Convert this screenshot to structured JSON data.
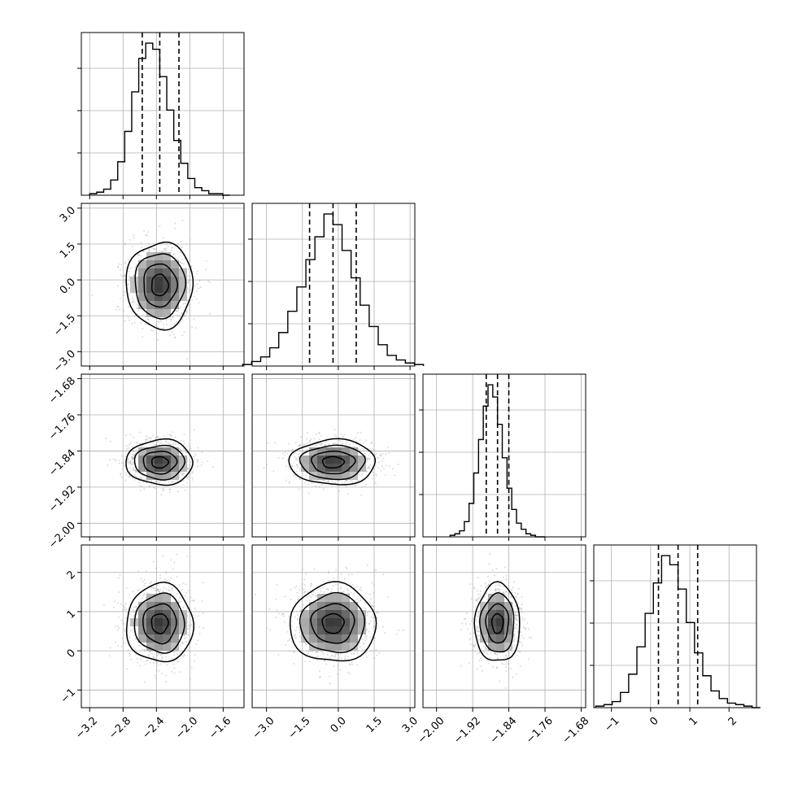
{
  "chart_data": {
    "type": "corner",
    "title": "",
    "params": [
      {
        "range": [
          -3.3,
          -1.35
        ],
        "ticks": [
          -3.2,
          -2.8,
          -2.4,
          -2.0,
          -1.6
        ],
        "tick_labels": [
          "−3.2",
          "−2.8",
          "−2.4",
          "−2.0",
          "−1.6"
        ],
        "mean": -2.36,
        "sd": 0.2,
        "quantiles": [
          -2.57,
          -2.36,
          -2.13
        ]
      },
      {
        "range": [
          -3.6,
          3.2
        ],
        "ticks": [
          -3.0,
          -1.5,
          0.0,
          1.5,
          3.0
        ],
        "tick_labels": [
          "−3.0",
          "−1.5",
          "0.0",
          "1.5",
          "3.0"
        ],
        "mean": -0.22,
        "sd": 0.9,
        "quantiles": [
          -1.2,
          -0.22,
          0.75
        ]
      },
      {
        "range": [
          -2.03,
          -1.67
        ],
        "ticks": [
          -2.0,
          -1.92,
          -1.84,
          -1.76,
          -1.68
        ],
        "tick_labels": [
          "−2.00",
          "−1.92",
          "−1.84",
          "−1.76",
          "−1.68"
        ],
        "mean": -1.865,
        "sd": 0.025,
        "quantiles": [
          -1.89,
          -1.865,
          -1.84
        ]
      },
      {
        "range": [
          -1.45,
          2.7
        ],
        "ticks": [
          -1,
          0,
          1,
          2
        ],
        "tick_labels": [
          "−1",
          "0",
          "1",
          "2"
        ],
        "mean": 0.7,
        "sd": 0.5,
        "quantiles": [
          0.2,
          0.7,
          1.2
        ]
      }
    ],
    "histograms": [
      {
        "param": 0,
        "bins": 20,
        "counts": [
          1,
          2,
          4,
          10,
          22,
          42,
          68,
          90,
          100,
          96,
          78,
          56,
          36,
          21,
          11,
          5,
          3,
          1,
          1,
          0
        ]
      },
      {
        "param": 1,
        "bins": 20,
        "counts": [
          1,
          3,
          6,
          12,
          22,
          36,
          52,
          70,
          85,
          100,
          93,
          76,
          58,
          40,
          26,
          14,
          7,
          4,
          2,
          1
        ]
      },
      {
        "param": 2,
        "bins": 20,
        "counts": [
          1,
          2,
          4,
          10,
          22,
          42,
          64,
          86,
          100,
          92,
          74,
          52,
          32,
          18,
          9,
          5,
          2,
          1,
          0,
          0
        ]
      },
      {
        "param": 3,
        "bins": 20,
        "counts": [
          1,
          2,
          4,
          10,
          22,
          40,
          62,
          82,
          100,
          94,
          78,
          56,
          36,
          21,
          11,
          6,
          3,
          2,
          1,
          0
        ]
      }
    ],
    "pairs": [
      [
        1,
        0
      ],
      [
        2,
        0
      ],
      [
        2,
        1
      ],
      [
        3,
        0
      ],
      [
        3,
        1
      ],
      [
        3,
        2
      ]
    ],
    "contour_levels_sigma": [
      0.5,
      1.0,
      1.5,
      2.0
    ],
    "grid": true
  }
}
